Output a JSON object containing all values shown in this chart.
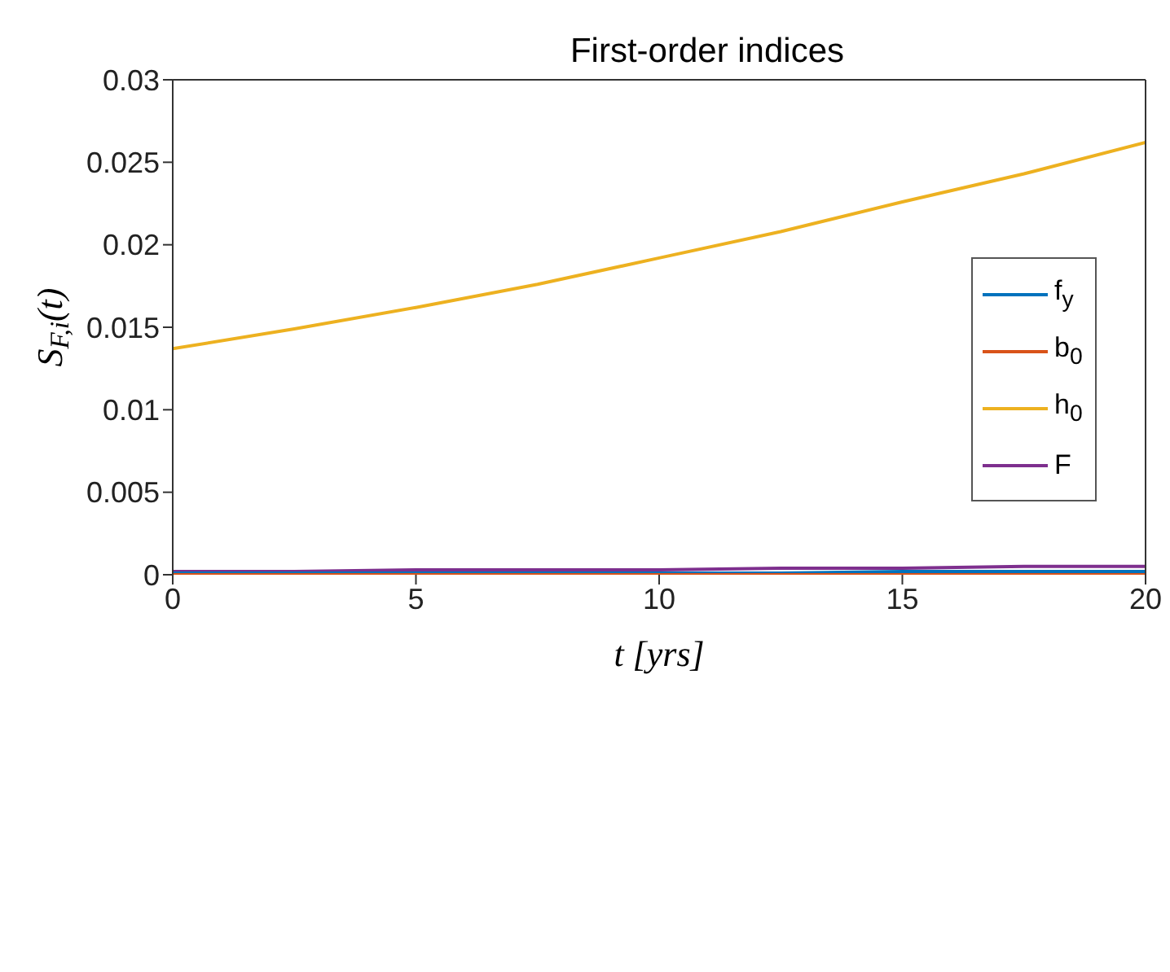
{
  "chart_data": {
    "type": "line",
    "title": "First-order indices",
    "xlabel": "t [yrs]",
    "ylabel": "S$_{F,i}$(t)",
    "x": [
      0,
      2.5,
      5,
      7.5,
      10,
      12.5,
      15,
      17.5,
      20
    ],
    "series": [
      {
        "name": "f$_{y}$",
        "color": "#0072bd",
        "values": [
          0.0001,
          0.0001,
          0.0001,
          0.0001,
          0.0001,
          0.0001,
          0.0002,
          0.0002,
          0.0002
        ]
      },
      {
        "name": "b$_{0}$",
        "color": "#d95319",
        "values": [
          0,
          0,
          0,
          0,
          0,
          0,
          0,
          0,
          0
        ]
      },
      {
        "name": "h$_{0}$",
        "color": "#edb120",
        "values": [
          0.0137,
          0.0149,
          0.0162,
          0.0176,
          0.0192,
          0.0208,
          0.0226,
          0.0243,
          0.0262
        ]
      },
      {
        "name": "F",
        "color": "#7e2f8e",
        "values": [
          0.0002,
          0.0002,
          0.0003,
          0.0003,
          0.0003,
          0.0004,
          0.0004,
          0.0005,
          0.0005
        ]
      }
    ],
    "xlim": [
      0,
      20
    ],
    "xticks": [
      0,
      5,
      10,
      15,
      20
    ],
    "ylim": [
      0,
      0.03
    ],
    "yticks": [
      0,
      0.005,
      0.01,
      0.015,
      0.02,
      0.025,
      0.03
    ],
    "grid": false,
    "legend": "right",
    "line_style": "solid",
    "marker": "none"
  }
}
